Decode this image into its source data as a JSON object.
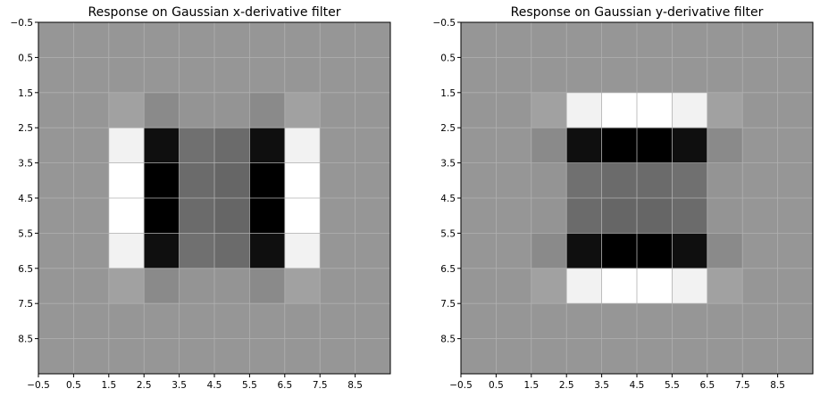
{
  "chart_data": [
    {
      "type": "heatmap",
      "title": "Response on Gaussian x-derivative filter",
      "colormap": "gray",
      "grid": true,
      "grid_color": "#b0b0b0",
      "xlim": [
        -0.5,
        9.5
      ],
      "ylim": [
        9.5,
        -0.5
      ],
      "xticks": [
        -0.5,
        0.5,
        1.5,
        2.5,
        3.5,
        4.5,
        5.5,
        6.5,
        7.5,
        8.5
      ],
      "xtick_labels": [
        "−0.5",
        "0.5",
        "1.5",
        "2.5",
        "3.5",
        "4.5",
        "5.5",
        "6.5",
        "7.5",
        "8.5"
      ],
      "yticks": [
        -0.5,
        0.5,
        1.5,
        2.5,
        3.5,
        4.5,
        5.5,
        6.5,
        7.5,
        8.5
      ],
      "ytick_labels": [
        "−0.5",
        "0.5",
        "1.5",
        "2.5",
        "3.5",
        "4.5",
        "5.5",
        "6.5",
        "7.5",
        "8.5"
      ],
      "values": [
        [
          0.59,
          0.59,
          0.59,
          0.59,
          0.59,
          0.59,
          0.59,
          0.59,
          0.59,
          0.59
        ],
        [
          0.59,
          0.59,
          0.59,
          0.59,
          0.59,
          0.59,
          0.59,
          0.59,
          0.59,
          0.59
        ],
        [
          0.59,
          0.59,
          0.63,
          0.54,
          0.58,
          0.58,
          0.54,
          0.63,
          0.59,
          0.59
        ],
        [
          0.59,
          0.59,
          0.95,
          0.06,
          0.44,
          0.42,
          0.06,
          0.95,
          0.59,
          0.59
        ],
        [
          0.59,
          0.59,
          1.0,
          0.0,
          0.42,
          0.4,
          0.0,
          1.0,
          0.59,
          0.59
        ],
        [
          0.59,
          0.59,
          1.0,
          0.0,
          0.42,
          0.4,
          0.0,
          1.0,
          0.59,
          0.59
        ],
        [
          0.59,
          0.59,
          0.95,
          0.06,
          0.44,
          0.42,
          0.06,
          0.95,
          0.59,
          0.59
        ],
        [
          0.59,
          0.59,
          0.63,
          0.54,
          0.58,
          0.58,
          0.54,
          0.63,
          0.59,
          0.59
        ],
        [
          0.59,
          0.59,
          0.59,
          0.59,
          0.59,
          0.59,
          0.59,
          0.59,
          0.59,
          0.59
        ],
        [
          0.59,
          0.59,
          0.59,
          0.59,
          0.59,
          0.59,
          0.59,
          0.59,
          0.59,
          0.59
        ]
      ]
    },
    {
      "type": "heatmap",
      "title": "Response on Gaussian y-derivative filter",
      "colormap": "gray",
      "grid": true,
      "grid_color": "#b0b0b0",
      "xlim": [
        -0.5,
        9.5
      ],
      "ylim": [
        9.5,
        -0.5
      ],
      "xticks": [
        -0.5,
        0.5,
        1.5,
        2.5,
        3.5,
        4.5,
        5.5,
        6.5,
        7.5,
        8.5
      ],
      "xtick_labels": [
        "−0.5",
        "0.5",
        "1.5",
        "2.5",
        "3.5",
        "4.5",
        "5.5",
        "6.5",
        "7.5",
        "8.5"
      ],
      "yticks": [
        -0.5,
        0.5,
        1.5,
        2.5,
        3.5,
        4.5,
        5.5,
        6.5,
        7.5,
        8.5
      ],
      "ytick_labels": [
        "−0.5",
        "0.5",
        "1.5",
        "2.5",
        "3.5",
        "4.5",
        "5.5",
        "6.5",
        "7.5",
        "8.5"
      ],
      "values": [
        [
          0.59,
          0.59,
          0.59,
          0.59,
          0.59,
          0.59,
          0.59,
          0.59,
          0.59,
          0.59
        ],
        [
          0.59,
          0.59,
          0.59,
          0.59,
          0.59,
          0.59,
          0.59,
          0.59,
          0.59,
          0.59
        ],
        [
          0.59,
          0.59,
          0.63,
          0.95,
          1.0,
          1.0,
          0.95,
          0.63,
          0.59,
          0.59
        ],
        [
          0.59,
          0.59,
          0.54,
          0.06,
          0.0,
          0.0,
          0.06,
          0.54,
          0.59,
          0.59
        ],
        [
          0.59,
          0.59,
          0.58,
          0.44,
          0.42,
          0.42,
          0.44,
          0.58,
          0.59,
          0.59
        ],
        [
          0.59,
          0.59,
          0.58,
          0.42,
          0.4,
          0.4,
          0.42,
          0.58,
          0.59,
          0.59
        ],
        [
          0.59,
          0.59,
          0.54,
          0.06,
          0.0,
          0.0,
          0.06,
          0.54,
          0.59,
          0.59
        ],
        [
          0.59,
          0.59,
          0.63,
          0.95,
          1.0,
          1.0,
          0.95,
          0.63,
          0.59,
          0.59
        ],
        [
          0.59,
          0.59,
          0.59,
          0.59,
          0.59,
          0.59,
          0.59,
          0.59,
          0.59,
          0.59
        ],
        [
          0.59,
          0.59,
          0.59,
          0.59,
          0.59,
          0.59,
          0.59,
          0.59,
          0.59,
          0.59
        ]
      ]
    }
  ]
}
